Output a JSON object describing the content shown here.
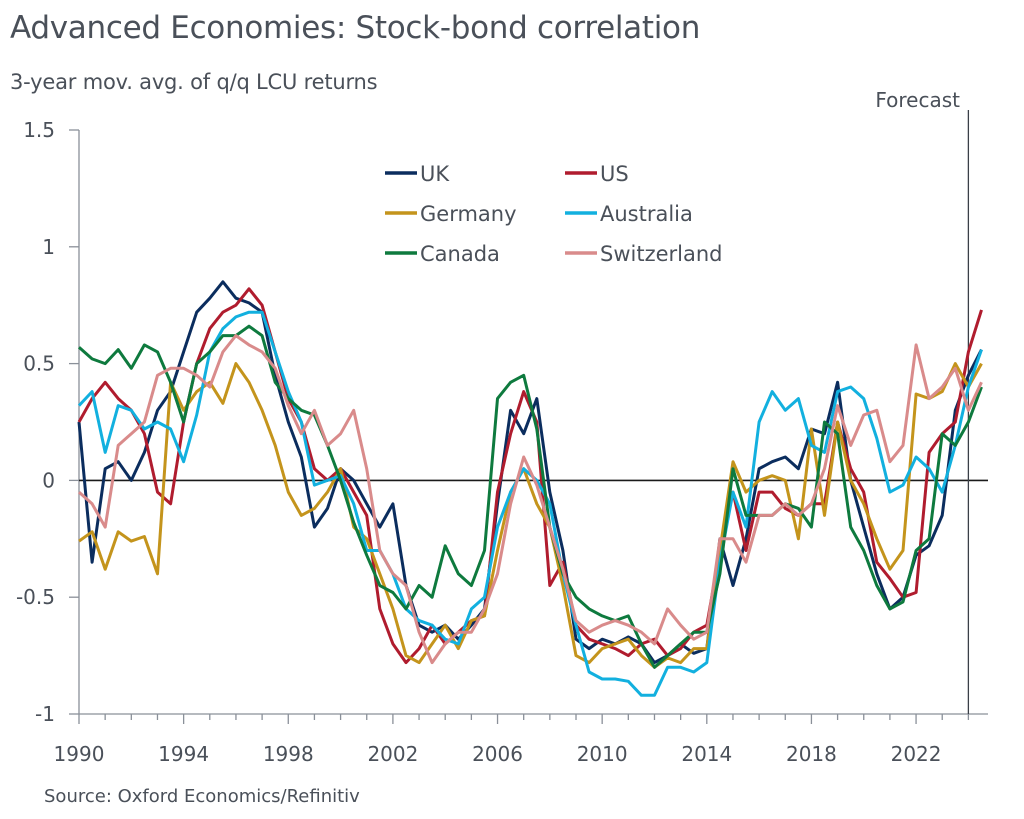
{
  "chart_data": {
    "type": "line",
    "title": "Advanced Economies: Stock-bond correlation",
    "subtitle": "3-year mov. avg. of q/q LCU returns",
    "source": "Source: Oxford Economics/Refinitiv",
    "annotation": "Forecast",
    "forecast_start": 2024.0,
    "xlabel": "",
    "ylabel": "",
    "xlim": [
      1990,
      2024.75
    ],
    "ylim": [
      -1,
      1.5
    ],
    "yticks": [
      -1,
      -0.5,
      0,
      0.5,
      1,
      1.5
    ],
    "ytick_labels": [
      "-1",
      "-0.5",
      "0",
      "0.5",
      "1",
      "1.5"
    ],
    "xticks": [
      1990,
      1994,
      1998,
      2002,
      2006,
      2010,
      2014,
      2018,
      2022
    ],
    "xtick_labels": [
      "1990",
      "1994",
      "1998",
      "2002",
      "2006",
      "2010",
      "2014",
      "2018",
      "2022"
    ],
    "zero_line": true,
    "grid": false,
    "legend_position": "top-center",
    "x": [
      1990.0,
      1990.5,
      1991.0,
      1991.5,
      1992.0,
      1992.5,
      1993.0,
      1993.5,
      1994.0,
      1994.5,
      1995.0,
      1995.5,
      1996.0,
      1996.5,
      1997.0,
      1997.5,
      1998.0,
      1998.5,
      1999.0,
      1999.5,
      2000.0,
      2000.5,
      2001.0,
      2001.5,
      2002.0,
      2002.5,
      2003.0,
      2003.5,
      2004.0,
      2004.5,
      2005.0,
      2005.5,
      2006.0,
      2006.5,
      2007.0,
      2007.5,
      2008.0,
      2008.5,
      2009.0,
      2009.5,
      2010.0,
      2010.5,
      2011.0,
      2011.5,
      2012.0,
      2012.5,
      2013.0,
      2013.5,
      2014.0,
      2014.5,
      2015.0,
      2015.5,
      2016.0,
      2016.5,
      2017.0,
      2017.5,
      2018.0,
      2018.5,
      2019.0,
      2019.5,
      2020.0,
      2020.5,
      2021.0,
      2021.5,
      2022.0,
      2022.5,
      2023.0,
      2023.5,
      2024.0,
      2024.5
    ],
    "series": [
      {
        "name": "UK",
        "color": "#0b2d5e",
        "values": [
          0.25,
          -0.35,
          0.05,
          0.08,
          0.0,
          0.12,
          0.3,
          0.38,
          0.55,
          0.72,
          0.78,
          0.85,
          0.78,
          0.76,
          0.72,
          0.45,
          0.25,
          0.1,
          -0.2,
          -0.12,
          0.05,
          0.0,
          -0.1,
          -0.2,
          -0.1,
          -0.45,
          -0.62,
          -0.65,
          -0.62,
          -0.68,
          -0.62,
          -0.55,
          -0.1,
          0.3,
          0.2,
          0.35,
          -0.05,
          -0.3,
          -0.68,
          -0.72,
          -0.68,
          -0.7,
          -0.67,
          -0.7,
          -0.78,
          -0.75,
          -0.7,
          -0.74,
          -0.72,
          -0.25,
          -0.45,
          -0.25,
          0.05,
          0.08,
          0.1,
          0.05,
          0.22,
          0.2,
          0.42,
          0.0,
          -0.2,
          -0.4,
          -0.55,
          -0.5,
          -0.32,
          -0.28,
          -0.15,
          0.3,
          0.45,
          0.56
        ]
      },
      {
        "name": "US",
        "color": "#b01c2e",
        "values": [
          0.25,
          0.35,
          0.42,
          0.35,
          0.3,
          0.2,
          -0.05,
          -0.1,
          0.25,
          0.5,
          0.65,
          0.72,
          0.75,
          0.82,
          0.75,
          0.55,
          0.35,
          0.25,
          0.05,
          0.0,
          0.05,
          -0.05,
          -0.15,
          -0.55,
          -0.7,
          -0.78,
          -0.72,
          -0.62,
          -0.7,
          -0.65,
          -0.6,
          -0.58,
          -0.05,
          0.2,
          0.38,
          0.25,
          -0.45,
          -0.35,
          -0.62,
          -0.68,
          -0.7,
          -0.72,
          -0.75,
          -0.7,
          -0.68,
          -0.75,
          -0.72,
          -0.65,
          -0.62,
          -0.3,
          -0.05,
          -0.3,
          -0.05,
          -0.05,
          -0.12,
          -0.15,
          -0.1,
          -0.1,
          0.25,
          0.05,
          -0.05,
          -0.35,
          -0.42,
          -0.5,
          -0.48,
          0.12,
          0.2,
          0.25,
          0.55,
          0.73
        ]
      },
      {
        "name": "Germany",
        "color": "#c4941c",
        "values": [
          -0.26,
          -0.22,
          -0.38,
          -0.22,
          -0.26,
          -0.24,
          -0.4,
          0.42,
          0.3,
          0.38,
          0.42,
          0.33,
          0.5,
          0.42,
          0.3,
          0.15,
          -0.05,
          -0.15,
          -0.12,
          -0.05,
          0.05,
          -0.2,
          -0.25,
          -0.4,
          -0.55,
          -0.75,
          -0.78,
          -0.7,
          -0.62,
          -0.72,
          -0.6,
          -0.58,
          -0.3,
          -0.05,
          0.05,
          -0.1,
          -0.2,
          -0.45,
          -0.75,
          -0.78,
          -0.72,
          -0.7,
          -0.68,
          -0.75,
          -0.8,
          -0.76,
          -0.78,
          -0.72,
          -0.72,
          -0.3,
          0.08,
          -0.05,
          0.0,
          0.02,
          0.0,
          -0.25,
          0.22,
          -0.15,
          0.25,
          0.0,
          -0.1,
          -0.25,
          -0.38,
          -0.3,
          0.37,
          0.35,
          0.38,
          0.5,
          0.4,
          0.5
        ]
      },
      {
        "name": "Australia",
        "color": "#12b0df",
        "values": [
          0.32,
          0.38,
          0.12,
          0.32,
          0.3,
          0.22,
          0.25,
          0.22,
          0.08,
          0.28,
          0.55,
          0.65,
          0.7,
          0.72,
          0.72,
          0.55,
          0.38,
          0.25,
          -0.02,
          0.0,
          0.02,
          -0.1,
          -0.3,
          -0.3,
          -0.4,
          -0.55,
          -0.6,
          -0.62,
          -0.68,
          -0.7,
          -0.55,
          -0.5,
          -0.2,
          -0.05,
          0.05,
          0.0,
          -0.1,
          -0.4,
          -0.62,
          -0.82,
          -0.85,
          -0.85,
          -0.86,
          -0.92,
          -0.92,
          -0.8,
          -0.8,
          -0.82,
          -0.78,
          -0.35,
          -0.05,
          -0.2,
          0.25,
          0.38,
          0.3,
          0.35,
          0.15,
          0.12,
          0.38,
          0.4,
          0.35,
          0.18,
          -0.05,
          -0.02,
          0.1,
          0.05,
          -0.05,
          0.15,
          0.4,
          0.56
        ]
      },
      {
        "name": "Canada",
        "color": "#0e7a3e",
        "values": [
          0.57,
          0.52,
          0.5,
          0.56,
          0.48,
          0.58,
          0.55,
          0.42,
          0.25,
          0.5,
          0.55,
          0.62,
          0.62,
          0.66,
          0.62,
          0.42,
          0.35,
          0.3,
          0.28,
          0.15,
          0.0,
          -0.18,
          -0.32,
          -0.45,
          -0.48,
          -0.55,
          -0.45,
          -0.5,
          -0.28,
          -0.4,
          -0.45,
          -0.3,
          0.35,
          0.42,
          0.45,
          0.22,
          -0.2,
          -0.4,
          -0.5,
          -0.55,
          -0.58,
          -0.6,
          -0.58,
          -0.7,
          -0.8,
          -0.75,
          -0.7,
          -0.65,
          -0.65,
          -0.4,
          0.05,
          -0.15,
          -0.15,
          -0.15,
          -0.1,
          -0.12,
          -0.2,
          0.25,
          0.2,
          -0.2,
          -0.3,
          -0.45,
          -0.55,
          -0.52,
          -0.3,
          -0.25,
          0.2,
          0.15,
          0.25,
          0.4
        ]
      },
      {
        "name": "Switzerland",
        "color": "#d98b8b",
        "values": [
          -0.05,
          -0.1,
          -0.2,
          0.15,
          0.2,
          0.25,
          0.45,
          0.48,
          0.48,
          0.45,
          0.4,
          0.55,
          0.62,
          0.58,
          0.55,
          0.48,
          0.32,
          0.2,
          0.3,
          0.15,
          0.2,
          0.3,
          0.05,
          -0.3,
          -0.4,
          -0.45,
          -0.65,
          -0.78,
          -0.7,
          -0.65,
          -0.65,
          -0.55,
          -0.4,
          -0.1,
          0.1,
          -0.02,
          -0.2,
          -0.38,
          -0.6,
          -0.65,
          -0.62,
          -0.6,
          -0.62,
          -0.65,
          -0.7,
          -0.55,
          -0.62,
          -0.68,
          -0.65,
          -0.25,
          -0.25,
          -0.35,
          -0.15,
          -0.15,
          -0.1,
          -0.15,
          -0.1,
          0.05,
          0.32,
          0.15,
          0.28,
          0.3,
          0.08,
          0.15,
          0.58,
          0.35,
          0.4,
          0.48,
          0.3,
          0.42
        ]
      }
    ]
  }
}
